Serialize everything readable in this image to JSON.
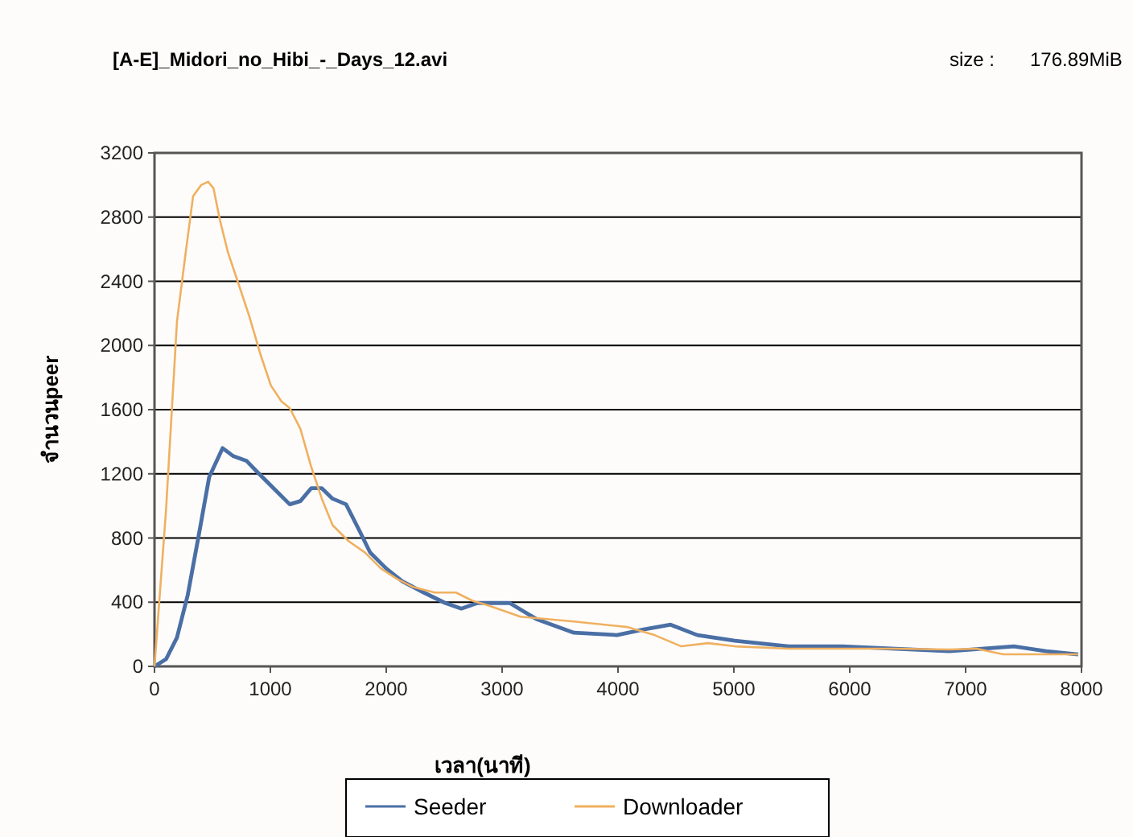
{
  "chart_data": {
    "type": "line",
    "title": "[A-E]_Midori_no_Hibi_-_Days_12.avi",
    "annotations": [
      "size :",
      "176.89MiB"
    ],
    "xlabel": "เวลา(นาที)",
    "ylabel": "จำนวนpeer",
    "xlim": [
      0,
      8000
    ],
    "xticks": [
      0,
      1000,
      2000,
      3000,
      4000,
      5000,
      6000,
      7000,
      8000
    ],
    "ylim": [
      0,
      3200
    ],
    "yticks": [
      0,
      400,
      800,
      1200,
      1600,
      2000,
      2400,
      2800,
      3200
    ],
    "grid": "y",
    "legend": "bottom",
    "marker": "none",
    "line_style": "solid",
    "series": [
      {
        "name": "Seeder",
        "color": "#4a6fa5",
        "x": [
          0,
          100,
          194,
          287,
          380,
          472,
          588,
          681,
          796,
          889,
          1028,
          1167,
          1259,
          1352,
          1444,
          1537,
          1653,
          1769,
          1861,
          2000,
          2139,
          2324,
          2509,
          2648,
          2787,
          2926,
          3065,
          3296,
          3620,
          3991,
          4222,
          4454,
          4685,
          5009,
          5472,
          5935,
          6398,
          6861,
          7139,
          7417,
          7694,
          7972
        ],
        "values": [
          0,
          45,
          180,
          445,
          810,
          1180,
          1360,
          1310,
          1280,
          1210,
          1110,
          1010,
          1030,
          1110,
          1110,
          1045,
          1010,
          845,
          710,
          610,
          530,
          460,
          395,
          360,
          395,
          395,
          395,
          295,
          210,
          195,
          230,
          260,
          195,
          160,
          125,
          125,
          110,
          95,
          110,
          125,
          95,
          75
        ]
      },
      {
        "name": "Downloader",
        "color": "#f0b060",
        "x": [
          0,
          100,
          194,
          264,
          333,
          403,
          463,
          509,
          565,
          634,
          727,
          819,
          912,
          1005,
          1097,
          1167,
          1259,
          1352,
          1444,
          1537,
          1676,
          1815,
          1954,
          2093,
          2231,
          2417,
          2602,
          2741,
          2880,
          3157,
          3620,
          4083,
          4315,
          4546,
          4778,
          5009,
          5472,
          5935,
          6398,
          6861,
          7093,
          7324,
          7556,
          7972
        ],
        "values": [
          0,
          980,
          2150,
          2550,
          2930,
          3000,
          3020,
          2980,
          2780,
          2580,
          2380,
          2180,
          1950,
          1750,
          1650,
          1610,
          1480,
          1245,
          1045,
          880,
          780,
          710,
          610,
          545,
          495,
          460,
          460,
          410,
          380,
          310,
          280,
          245,
          195,
          125,
          145,
          125,
          110,
          110,
          110,
          105,
          110,
          75,
          75,
          75
        ]
      }
    ]
  }
}
